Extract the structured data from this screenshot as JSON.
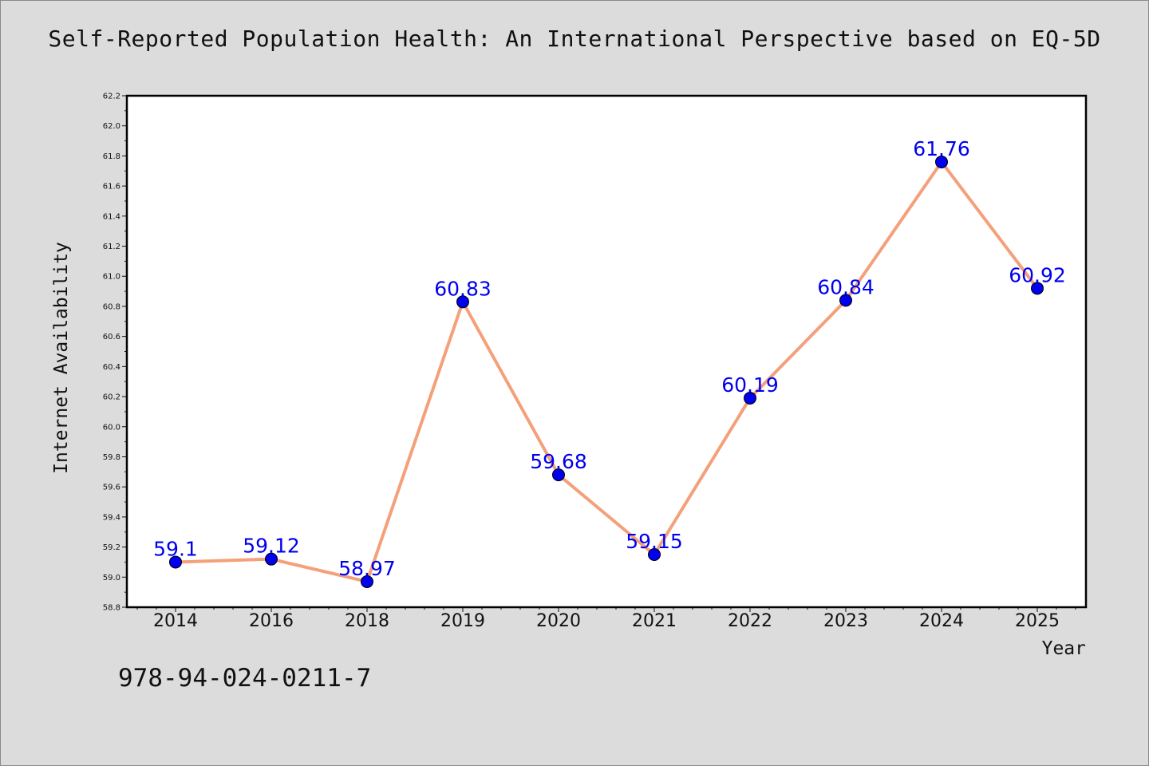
{
  "title": "Self-Reported Population Health: An International Perspective based on EQ-5D",
  "footer_id": "978-94-024-0211-7",
  "colors": {
    "background": "#dcdcdc",
    "plot_background": "#ffffff",
    "line": "#f4a07a",
    "marker": "#0000ee",
    "data_label": "#0000ee"
  },
  "chart_data": {
    "type": "line",
    "title": "Self-Reported Population Health: An International Perspective based on EQ-5D",
    "xlabel": "Year",
    "ylabel": "Internet Availability",
    "categories": [
      "2014",
      "2016",
      "2018",
      "2019",
      "2020",
      "2021",
      "2022",
      "2023",
      "2024",
      "2025"
    ],
    "series": [
      {
        "values": [
          59.1,
          59.12,
          58.97,
          60.83,
          59.68,
          59.15,
          60.19,
          60.84,
          61.76,
          60.92
        ],
        "labels": [
          "59.1",
          "59.12",
          "58.97",
          "60.83",
          "59.68",
          "59.15",
          "60.19",
          "60.84",
          "61.76",
          "60.92"
        ]
      }
    ],
    "ylim": [
      58.8,
      62.2
    ],
    "yticks": [
      "58.8",
      "59.0",
      "59.2",
      "59.4",
      "59.6",
      "59.8",
      "60.0",
      "60.2",
      "60.4",
      "60.6",
      "60.8",
      "61.0",
      "61.2",
      "61.4",
      "61.6",
      "61.8",
      "62.0",
      "62.2"
    ],
    "grid": false,
    "legend": "none",
    "marker": "circle"
  }
}
